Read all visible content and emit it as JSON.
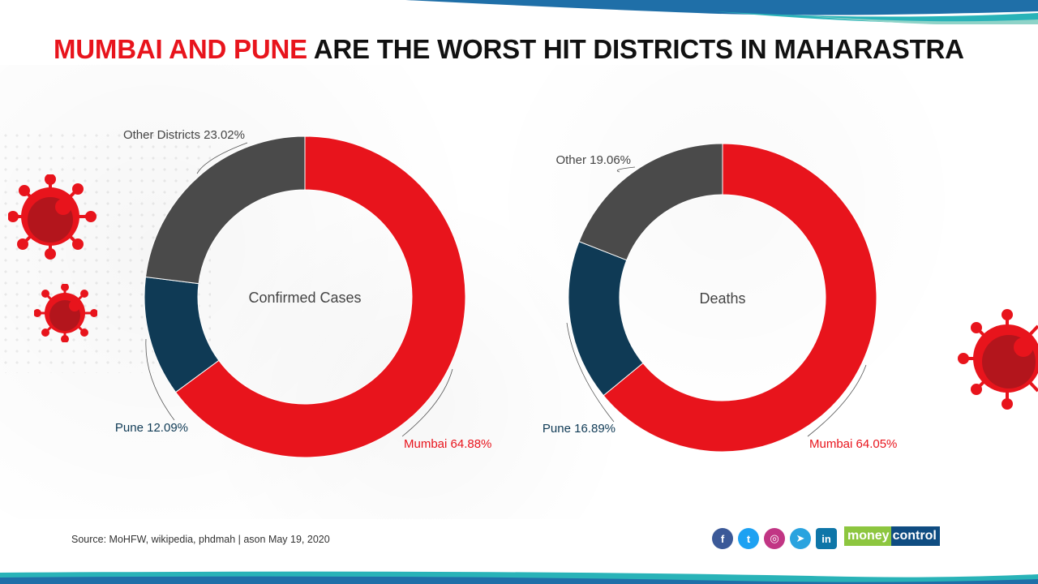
{
  "title": {
    "highlight": "MUMBAI AND PUNE",
    "rest": "ARE THE WORST HIT DISTRICTS IN MAHARASTRA"
  },
  "colors": {
    "mumbai": "#e8141c",
    "pune": "#0f3a55",
    "other": "#4a4a4a",
    "accent_red": "#e8141c",
    "band_blue": "#1f6fa8",
    "band_teal": "#29b3b8"
  },
  "chart_data": [
    {
      "type": "pie",
      "donut": true,
      "title": "Confirmed Cases",
      "categories": [
        "Mumbai",
        "Pune",
        "Other Districts"
      ],
      "values": [
        64.88,
        12.09,
        23.02
      ],
      "labels": [
        "Mumbai 64.88%",
        "Pune 12.09%",
        "Other Districts 23.02%"
      ]
    },
    {
      "type": "pie",
      "donut": true,
      "title": "Deaths",
      "categories": [
        "Mumbai",
        "Pune",
        "Other"
      ],
      "values": [
        64.05,
        16.89,
        19.06
      ],
      "labels": [
        "Mumbai 64.05%",
        "Pune 16.89%",
        "Other 19.06%"
      ]
    }
  ],
  "footer": {
    "source": "Source: MoHFW, wikipedia, phdmah | ason May 19, 2020"
  },
  "social": [
    "f",
    "t",
    "◎",
    "➤",
    "in"
  ],
  "brand": {
    "part1": "money",
    "part2": "control"
  }
}
